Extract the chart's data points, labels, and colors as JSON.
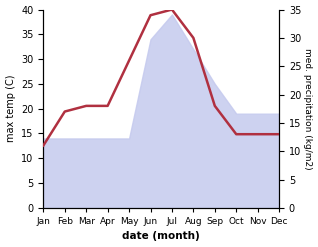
{
  "months": [
    "Jan",
    "Feb",
    "Mar",
    "Apr",
    "May",
    "Jun",
    "Jul",
    "Aug",
    "Sep",
    "Oct",
    "Nov",
    "Dec"
  ],
  "temperature": [
    14,
    14,
    14,
    14,
    14,
    34,
    39,
    32,
    25,
    19,
    19,
    19
  ],
  "precipitation": [
    11,
    17,
    18,
    18,
    26,
    34,
    35,
    30,
    18,
    13,
    13,
    13
  ],
  "temp_fill_color": "#c5caee",
  "precip_color": "#b03040",
  "temp_ylim": [
    0,
    40
  ],
  "precip_ylim": [
    0,
    35
  ],
  "xlabel": "date (month)",
  "ylabel_left": "max temp (C)",
  "ylabel_right": "med. precipitation (kg/m2)",
  "background_color": "#ffffff",
  "fig_width": 3.18,
  "fig_height": 2.47,
  "dpi": 100
}
